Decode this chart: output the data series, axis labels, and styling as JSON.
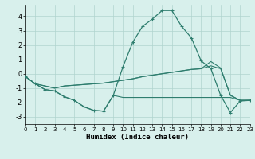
{
  "x": [
    0,
    1,
    2,
    3,
    4,
    5,
    6,
    7,
    8,
    9,
    10,
    11,
    12,
    13,
    14,
    15,
    16,
    17,
    18,
    19,
    20,
    21,
    22,
    23
  ],
  "line_main": [
    -0.2,
    -0.7,
    -1.1,
    -1.2,
    -1.6,
    -1.85,
    -2.3,
    -2.55,
    -2.6,
    -1.5,
    0.5,
    2.2,
    3.3,
    3.8,
    4.4,
    4.4,
    3.3,
    2.5,
    0.9,
    0.35,
    -1.5,
    -2.7,
    -1.9,
    -1.85
  ],
  "line_flat_low": [
    -0.2,
    -0.7,
    -1.1,
    -1.2,
    -1.6,
    -1.85,
    -2.3,
    -2.55,
    -2.6,
    -1.5,
    -1.65,
    -1.65,
    -1.65,
    -1.65,
    -1.65,
    -1.65,
    -1.65,
    -1.65,
    -1.65,
    -1.65,
    -1.65,
    -1.65,
    -1.85,
    -1.85
  ],
  "line_rise1": [
    -0.2,
    -0.7,
    -0.85,
    -1.0,
    -0.85,
    -0.8,
    -0.75,
    -0.7,
    -0.65,
    -0.55,
    -0.45,
    -0.35,
    -0.2,
    -0.1,
    0.0,
    0.1,
    0.2,
    0.3,
    0.35,
    0.85,
    0.4,
    -1.5,
    -1.85,
    -1.85
  ],
  "line_rise2": [
    -0.2,
    -0.7,
    -0.85,
    -1.0,
    -0.85,
    -0.8,
    -0.75,
    -0.7,
    -0.65,
    -0.55,
    -0.45,
    -0.35,
    -0.2,
    -0.1,
    0.0,
    0.1,
    0.2,
    0.3,
    0.35,
    0.55,
    0.35,
    -1.5,
    -1.85,
    -1.85
  ],
  "color": "#2e7d6e",
  "bg_color": "#d8f0ec",
  "grid_color": "#b0d4ce",
  "xlabel": "Humidex (Indice chaleur)",
  "ylim": [
    -3.5,
    4.8
  ],
  "xlim": [
    0,
    23
  ],
  "yticks": [
    -3,
    -2,
    -1,
    0,
    1,
    2,
    3,
    4
  ],
  "xticks": [
    0,
    1,
    2,
    3,
    4,
    5,
    6,
    7,
    8,
    9,
    10,
    11,
    12,
    13,
    14,
    15,
    16,
    17,
    18,
    19,
    20,
    21,
    22,
    23
  ]
}
